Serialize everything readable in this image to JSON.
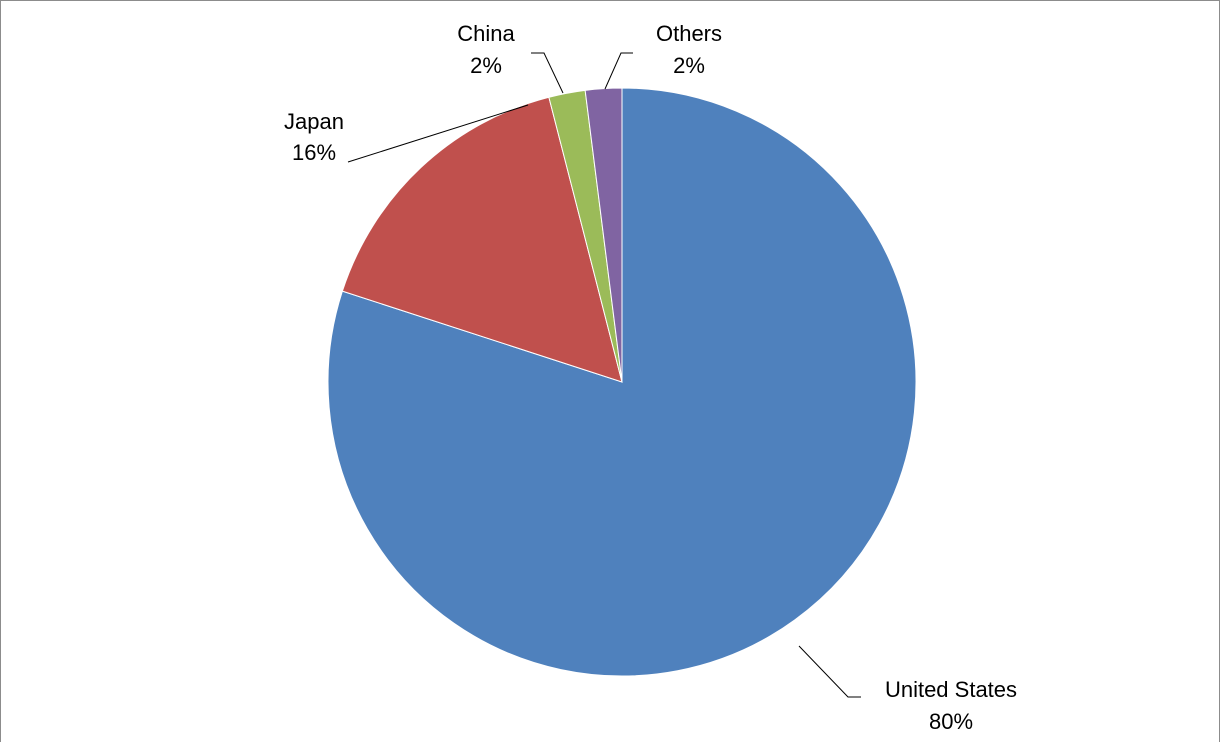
{
  "chart_data": {
    "type": "pie",
    "categories": [
      "United States",
      "Japan",
      "China",
      "Others"
    ],
    "values": [
      80,
      16,
      2,
      2
    ],
    "value_labels": [
      "80%",
      "16%",
      "2%",
      "2%"
    ],
    "colors": [
      "#4F81BD",
      "#C0504D",
      "#9BBB59",
      "#8064A2"
    ],
    "legend": "none",
    "data_labels": "category and percentage with leader lines"
  }
}
